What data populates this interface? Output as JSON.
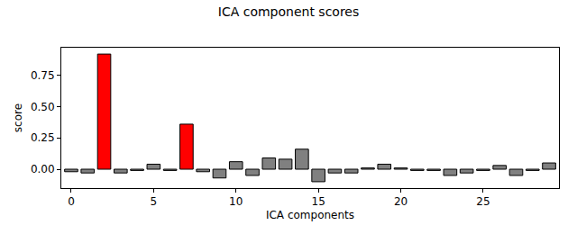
{
  "chart_data": {
    "type": "bar",
    "title": "ICA component scores",
    "x_label": "ICA components",
    "y_label": "score",
    "x": [
      0,
      1,
      2,
      3,
      4,
      5,
      6,
      7,
      8,
      9,
      10,
      11,
      12,
      13,
      14,
      15,
      16,
      17,
      18,
      19,
      20,
      21,
      22,
      23,
      24,
      25,
      26,
      27,
      28,
      29
    ],
    "values": [
      -0.02,
      -0.03,
      0.92,
      -0.03,
      -0.01,
      0.04,
      -0.01,
      0.36,
      -0.02,
      -0.07,
      0.06,
      -0.05,
      0.09,
      0.08,
      0.16,
      -0.1,
      -0.03,
      -0.03,
      0.01,
      0.04,
      0.01,
      -0.01,
      -0.01,
      -0.05,
      -0.03,
      -0.01,
      0.03,
      -0.05,
      -0.01,
      0.05
    ],
    "colors": [
      "#808080",
      "#808080",
      "#ff0000",
      "#808080",
      "#808080",
      "#808080",
      "#808080",
      "#ff0000",
      "#808080",
      "#808080",
      "#808080",
      "#808080",
      "#808080",
      "#808080",
      "#808080",
      "#808080",
      "#808080",
      "#808080",
      "#808080",
      "#808080",
      "#808080",
      "#808080",
      "#808080",
      "#808080",
      "#808080",
      "#808080",
      "#808080",
      "#808080",
      "#808080",
      "#808080"
    ],
    "xlim": [
      -0.6,
      29.6
    ],
    "xticks": [
      0,
      5,
      10,
      15,
      20,
      25
    ],
    "ylim": [
      -0.151,
      0.971
    ],
    "yticks": [
      {
        "value": 0,
        "label": "0.00"
      },
      {
        "value": 0.25,
        "label": "0.25"
      },
      {
        "value": 0.5,
        "label": "0.50"
      },
      {
        "value": 0.75,
        "label": "0.75"
      }
    ],
    "grid": false
  }
}
